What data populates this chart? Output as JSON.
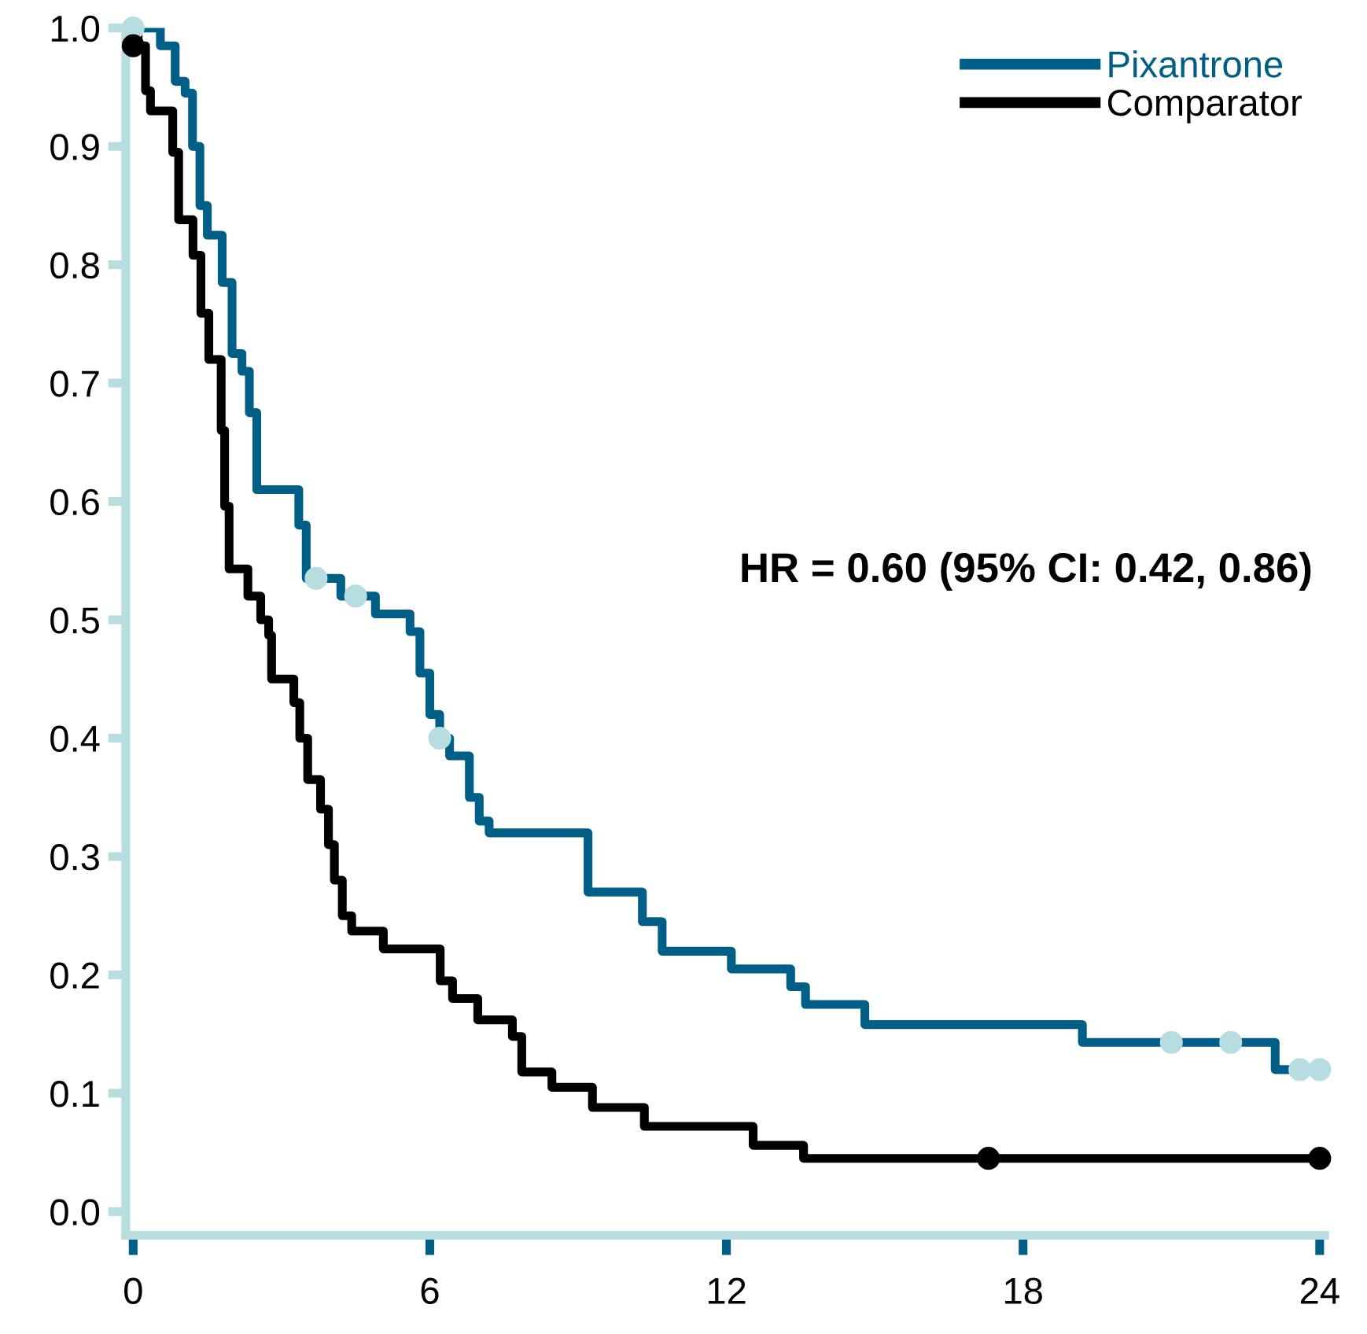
{
  "chart_data": {
    "type": "step",
    "xlim": [
      -0.15,
      24.1
    ],
    "ylim": [
      -0.02,
      1.0
    ],
    "xticks": [
      0,
      6,
      12,
      18,
      24
    ],
    "yticks": [
      {
        "value": 0,
        "label": "0.0"
      },
      0.1,
      0.2,
      0.3,
      0.4,
      0.5,
      0.6,
      0.7,
      0.8,
      0.9,
      {
        "value": 1,
        "label": "1.0"
      }
    ],
    "grid": false,
    "legend": "top right",
    "line_style": "solid",
    "marker": "none",
    "annotations": [
      "HR = 0.60 (95% CI: 0.42, 0.86)"
    ],
    "series": [
      {
        "name": "Pixantrone",
        "color": "#005f87",
        "x": [
          0,
          0.55,
          0.85,
          1.05,
          1.2,
          1.35,
          1.5,
          1.8,
          2.0,
          2.2,
          2.35,
          2.5,
          3.35,
          3.5,
          4.2,
          4.9,
          5.6,
          5.8,
          6.0,
          6.2,
          6.4,
          6.8,
          7.0,
          7.2,
          9.2,
          10.3,
          10.7,
          12.1,
          13.3,
          13.6,
          14.8,
          19.2,
          23.1,
          24
        ],
        "values": [
          1.0,
          0.985,
          0.955,
          0.945,
          0.9,
          0.85,
          0.825,
          0.785,
          0.725,
          0.71,
          0.675,
          0.61,
          0.58,
          0.535,
          0.52,
          0.505,
          0.49,
          0.455,
          0.42,
          0.4,
          0.385,
          0.35,
          0.33,
          0.32,
          0.27,
          0.245,
          0.22,
          0.205,
          0.19,
          0.175,
          0.158,
          0.143,
          0.12,
          0.12
        ]
      },
      {
        "name": "Comparator",
        "color": "#000000",
        "x": [
          0,
          0.1,
          0.25,
          0.35,
          0.8,
          0.92,
          1.21,
          1.37,
          1.53,
          1.78,
          1.85,
          1.94,
          2.32,
          2.58,
          2.74,
          2.8,
          3.25,
          3.37,
          3.53,
          3.79,
          3.95,
          4.07,
          4.23,
          4.42,
          5.06,
          6.21,
          6.46,
          6.97,
          7.67,
          7.86,
          8.47,
          9.29,
          10.34,
          12.54,
          13.56,
          24
        ],
        "values": [
          1.0,
          0.985,
          0.947,
          0.93,
          0.895,
          0.838,
          0.808,
          0.759,
          0.72,
          0.66,
          0.596,
          0.543,
          0.52,
          0.5,
          0.487,
          0.45,
          0.43,
          0.4,
          0.365,
          0.34,
          0.31,
          0.28,
          0.25,
          0.237,
          0.222,
          0.195,
          0.18,
          0.162,
          0.148,
          0.118,
          0.105,
          0.088,
          0.072,
          0.056,
          0.045,
          0.045
        ]
      },
      {
        "type": "scatter",
        "marker": "circle",
        "color": "#b8dde1",
        "x": [
          0,
          3.7,
          4.5,
          6.2,
          21.0,
          22.2,
          23.6,
          24
        ],
        "values": [
          1.0,
          0.535,
          0.52,
          0.4,
          0.143,
          0.143,
          0.12,
          0.12
        ]
      },
      {
        "type": "scatter",
        "marker": "circle",
        "color": "#000000",
        "x": [
          0,
          17.3,
          24
        ],
        "values": [
          0.985,
          0.045,
          0.045
        ]
      }
    ]
  }
}
